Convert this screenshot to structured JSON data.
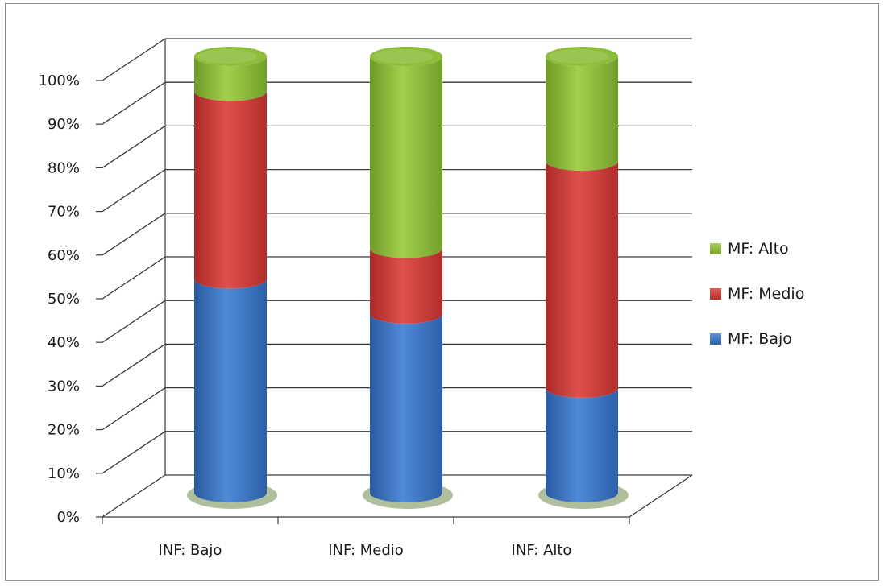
{
  "chart_data": {
    "type": "bar",
    "stacked": true,
    "percent_stacked": true,
    "style": "3d-cylinder",
    "title": "",
    "xlabel": "",
    "ylabel": "",
    "ylim": [
      0,
      100
    ],
    "y_ticks": [
      "0%",
      "10%",
      "20%",
      "30%",
      "40%",
      "50%",
      "60%",
      "70%",
      "80%",
      "90%",
      "100%"
    ],
    "categories": [
      "INF: Bajo",
      "INF: Medio",
      "INF: Alto"
    ],
    "series": [
      {
        "name": "MF: Bajo",
        "values": [
          49,
          41,
          24
        ],
        "color": "#3a75c4"
      },
      {
        "name": "MF: Medio",
        "values": [
          43,
          15,
          52
        ],
        "color": "#d23c38"
      },
      {
        "name": "MF: Alto",
        "values": [
          8,
          44,
          24
        ],
        "color": "#8ebd3c"
      }
    ],
    "legend_position": "right",
    "legend_order": [
      "MF: Alto",
      "MF: Medio",
      "MF: Bajo"
    ],
    "grid": true
  }
}
